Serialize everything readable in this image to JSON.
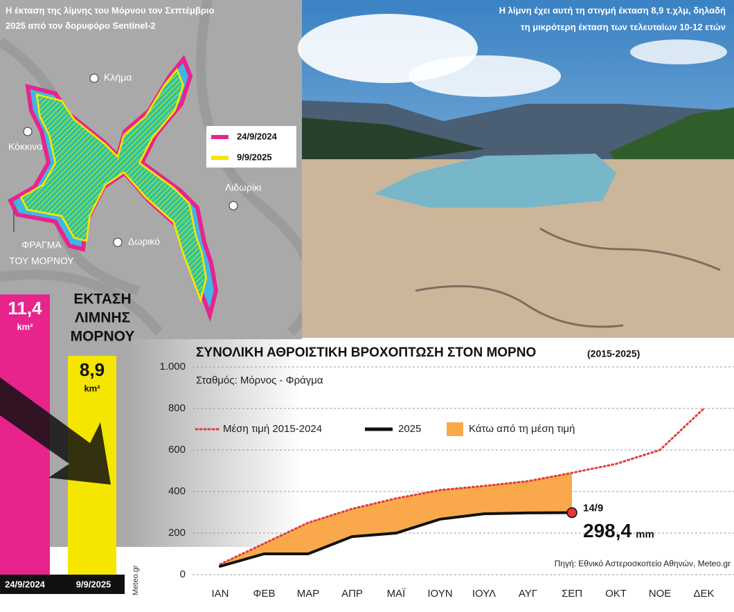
{
  "map": {
    "title": [
      "Η έκταση της λίμνης του Μόρνου τον Σεπτέμβριο",
      "2025 από τον δορυφόρο Sentinel-2"
    ],
    "places": [
      "Κλήμα",
      "Κόκκινο",
      "Λιδωρίκι",
      "Δωρικό"
    ],
    "dam": [
      "ΦΡΑΓΜΑ",
      "ΤΟΥ ΜΟΡΝΟΥ"
    ],
    "legend": [
      {
        "label": "24/9/2024",
        "color": "#e8248c"
      },
      {
        "label": "9/9/2025",
        "color": "#f5e600"
      }
    ]
  },
  "photo_caption": [
    "Η λίμνη έχει αυτή τη στιγμή έκταση 8,9 τ.χλμ, δηλαδή",
    "τη μικρότερη έκταση των τελευταίων 10-12 ετών"
  ],
  "lake_area": {
    "title": [
      "ΕΚΤΑΣΗ",
      "ΛΙΜΝΗΣ",
      "ΜΟΡΝΟΥ"
    ],
    "unit": "km²",
    "bars": [
      {
        "date": "24/9/2024",
        "value": 11.4,
        "label": "11,4",
        "color": "#e8248c"
      },
      {
        "date": "9/9/2025",
        "value": 8.9,
        "label": "8,9",
        "color": "#f5e600"
      }
    ],
    "credit": "Meteo.gr"
  },
  "chart_data": {
    "type": "line",
    "title": "ΣΥΝΟΛΙΚΗ ΑΘΡΟΙΣΤΙΚΗ ΒΡΟΧΟΠΤΩΣΗ ΣΤΟΝ ΜΟΡΝΟ",
    "title_note": "(2015-2025)",
    "subtitle": "Σταθμός: Μόρνος - Φράγμα",
    "categories": [
      "ΙΑΝ",
      "ΦΕΒ",
      "ΜΑΡ",
      "ΑΠΡ",
      "ΜΑΪ",
      "ΙΟΥΝ",
      "ΙΟΥΛ",
      "ΑΥΓ",
      "ΣΕΠ",
      "ΟΚΤ",
      "ΝΟΕ",
      "ΔΕΚ"
    ],
    "series": [
      {
        "name": "Μέση τιμή 2015-2024",
        "color": "#e53935",
        "values": [
          50,
          150,
          250,
          317,
          367,
          407,
          427,
          450,
          490,
          533,
          600,
          800
        ]
      },
      {
        "name": "2025",
        "color": "#111111",
        "values": [
          40,
          100,
          100,
          183,
          200,
          267,
          293,
          297,
          298.4,
          null,
          null,
          null
        ],
        "value_labels": [
          null,
          null,
          null,
          null,
          null,
          null,
          null,
          null,
          "298,4",
          null,
          null,
          null
        ]
      }
    ],
    "area_label": "Κάτω από τη μέση τιμή",
    "area_color": "#f9a94b",
    "annotation": {
      "date": "14/9",
      "unit": "mm"
    },
    "ylim": [
      0,
      1000
    ],
    "yticks": [
      0,
      200,
      400,
      600,
      800,
      {
        "value": 1000,
        "label": "1.000"
      }
    ],
    "grid": true,
    "source": "Πηγή: Εθνικό Αστεροσκοπείο Αθηνών, Meteo.gr"
  }
}
